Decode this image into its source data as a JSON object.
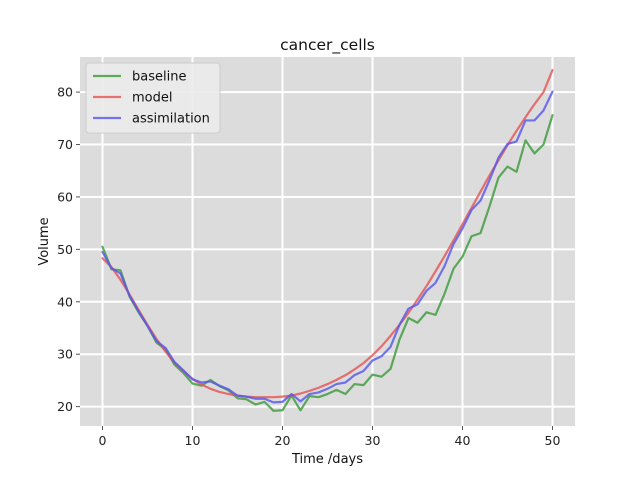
{
  "chart_data": {
    "type": "line",
    "title": "cancer_cells",
    "xlabel": "Time /days",
    "ylabel": "Volume",
    "xlim": [
      -2.5,
      52.5
    ],
    "ylim": [
      16.3,
      86.7
    ],
    "xticks": [
      0,
      10,
      20,
      30,
      40,
      50
    ],
    "yticks": [
      20,
      30,
      40,
      50,
      60,
      70,
      80
    ],
    "grid": true,
    "legend_position": "top-left",
    "background": "#dcdcdc",
    "x": [
      0,
      1,
      2,
      3,
      4,
      5,
      6,
      7,
      8,
      9,
      10,
      11,
      12,
      13,
      14,
      15,
      16,
      17,
      18,
      19,
      20,
      21,
      22,
      23,
      24,
      25,
      26,
      27,
      28,
      29,
      30,
      31,
      32,
      33,
      34,
      35,
      36,
      37,
      38,
      39,
      40,
      41,
      42,
      43,
      44,
      45,
      46,
      47,
      48,
      49,
      50
    ],
    "series": [
      {
        "name": "baseline",
        "color": "#3a9a3a",
        "values": [
          50.5,
          46.2,
          46.0,
          41.0,
          38.0,
          35.4,
          32.2,
          30.9,
          28.0,
          26.4,
          24.4,
          24.0,
          25.1,
          23.9,
          23.1,
          21.6,
          21.4,
          20.4,
          20.9,
          19.2,
          19.3,
          22.1,
          19.3,
          22.0,
          21.8,
          22.4,
          23.2,
          22.4,
          24.3,
          24.1,
          26.1,
          25.7,
          27.2,
          32.8,
          36.9,
          36.0,
          38.0,
          37.5,
          41.5,
          46.3,
          48.6,
          52.5,
          53.1,
          58.2,
          63.7,
          65.8,
          64.8,
          70.8,
          68.3,
          70.0,
          75.6
        ]
      },
      {
        "name": "model",
        "color": "#e55353",
        "values": [
          48.3,
          46.6,
          44.2,
          41.4,
          38.5,
          35.6,
          32.9,
          30.5,
          28.4,
          26.7,
          25.3,
          24.2,
          23.4,
          22.8,
          22.4,
          22.1,
          21.9,
          21.8,
          21.8,
          21.8,
          21.9,
          22.1,
          22.5,
          23.0,
          23.6,
          24.3,
          25.1,
          26.0,
          27.1,
          28.3,
          29.8,
          31.5,
          33.5,
          35.6,
          37.9,
          40.4,
          43.0,
          45.8,
          48.7,
          51.7,
          54.8,
          57.9,
          61.0,
          64.1,
          67.0,
          69.9,
          72.6,
          75.2,
          77.7,
          80.0,
          84.2
        ]
      },
      {
        "name": "assimilation",
        "color": "#5555ee",
        "values": [
          49.5,
          46.4,
          45.4,
          41.2,
          38.2,
          35.4,
          32.5,
          31.2,
          28.5,
          26.9,
          25.2,
          24.6,
          24.8,
          24.0,
          23.3,
          22.1,
          21.9,
          21.5,
          21.5,
          20.8,
          20.9,
          22.4,
          21.0,
          22.4,
          22.7,
          23.4,
          24.3,
          24.6,
          26.0,
          26.8,
          28.8,
          29.6,
          31.4,
          35.6,
          38.7,
          39.5,
          42.1,
          43.6,
          46.8,
          51.0,
          54.0,
          57.5,
          59.3,
          63.2,
          67.5,
          70.1,
          70.6,
          74.6,
          74.6,
          76.5,
          80.1
        ]
      }
    ]
  }
}
